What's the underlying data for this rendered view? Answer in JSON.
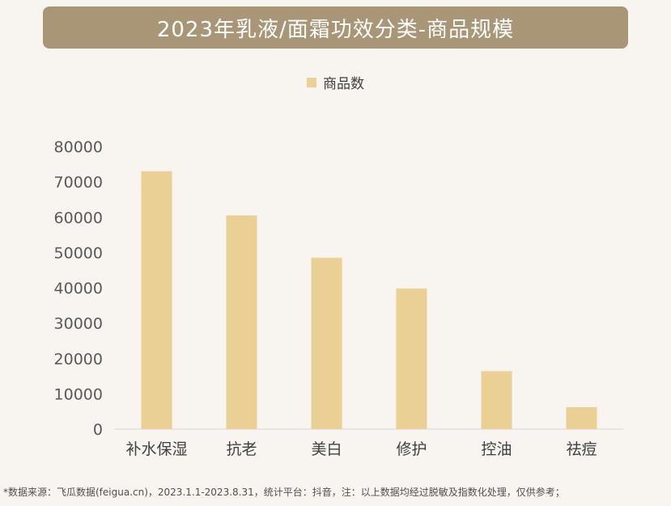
{
  "title": "2023年乳液/面霜功效分类-商品规模",
  "footnote": "*数据来源：飞瓜数据(feigua.cn)，2023.1.1-2023.8.31，统计平台：抖音，注：以上数据均经过脱敏及指数化处理，仅供参考；",
  "colors": {
    "background": "#f8f4ef",
    "banner": "#a89676",
    "bar": "#ebd095",
    "axis_text": "#595959",
    "axis_line": "#d9d9d9"
  },
  "chart_data": {
    "type": "bar",
    "categories": [
      "补水保湿",
      "抗老",
      "美白",
      "修护",
      "控油",
      "祛痘"
    ],
    "series": [
      {
        "name": "商品数",
        "values": [
          73000,
          60500,
          48500,
          39800,
          16400,
          6200
        ]
      }
    ],
    "ylim": [
      0,
      80000
    ],
    "yticks": [
      0,
      10000,
      20000,
      30000,
      40000,
      50000,
      60000,
      70000,
      80000
    ],
    "xlabel": "",
    "ylabel": "",
    "grid": false,
    "legend_position": "top-center"
  }
}
